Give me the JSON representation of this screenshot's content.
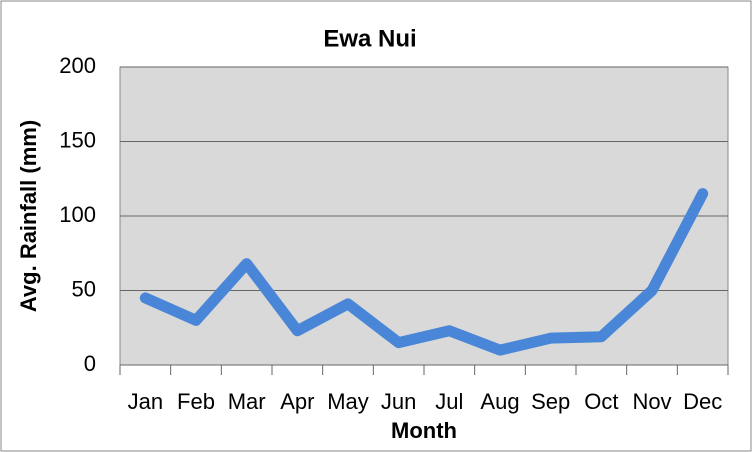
{
  "chart_data": {
    "type": "line",
    "title": "Ewa Nui",
    "x_label": "Month",
    "y_label": "Avg. Rainfall  (mm)",
    "categories": [
      "Jan",
      "Feb",
      "Mar",
      "Apr",
      "May",
      "Jun",
      "Jul",
      "Aug",
      "Sep",
      "Oct",
      "Nov",
      "Dec"
    ],
    "values": [
      45,
      30,
      68,
      23,
      41,
      15,
      23,
      10,
      18,
      19,
      50,
      115
    ],
    "color": "#4a86d8",
    "ylim": [
      0,
      200
    ],
    "yticks": [
      0,
      50,
      100,
      150,
      200
    ],
    "grid": true
  }
}
